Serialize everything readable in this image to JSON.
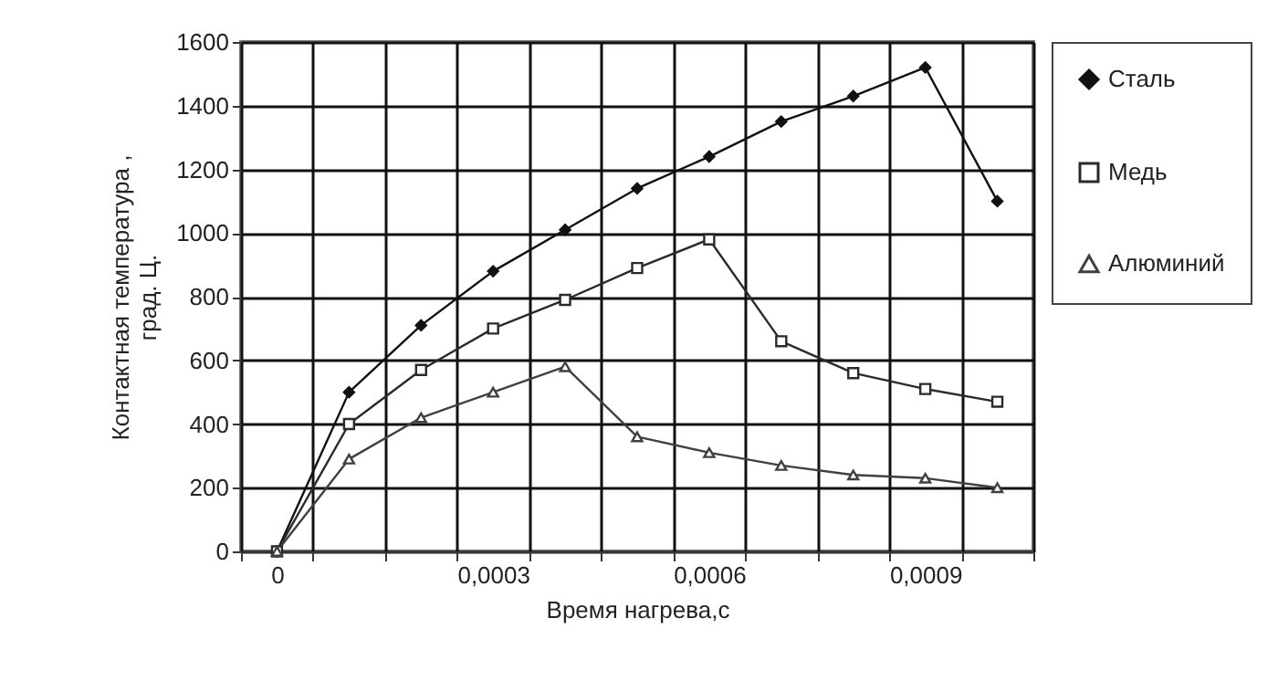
{
  "chart_data": {
    "type": "line",
    "xlabel": "Время нагрева,с",
    "ylabel": "Контактная температура , град. Ц.",
    "categories": [
      "0",
      null,
      null,
      "0,0003",
      null,
      null,
      "0,0006",
      null,
      null,
      "0,0009",
      null
    ],
    "series": [
      {
        "name": "Сталь",
        "color": "#111111",
        "marker": "diamond",
        "values": [
          0,
          500,
          710,
          880,
          1010,
          1140,
          1240,
          1350,
          1430,
          1520,
          1100
        ]
      },
      {
        "name": "Медь",
        "color": "#2a2a2a",
        "marker": "square",
        "values": [
          0,
          400,
          570,
          700,
          790,
          890,
          980,
          660,
          560,
          510,
          470
        ]
      },
      {
        "name": "Алюминий",
        "color": "#404040",
        "marker": "triangle",
        "values": [
          0,
          290,
          420,
          500,
          580,
          360,
          310,
          270,
          240,
          230,
          200
        ]
      }
    ],
    "ylim": [
      0,
      1600
    ],
    "yticks": [
      0,
      200,
      400,
      600,
      800,
      1000,
      1200,
      1400,
      1600
    ],
    "grid": true,
    "legend": "right",
    "line_style": "solid"
  }
}
